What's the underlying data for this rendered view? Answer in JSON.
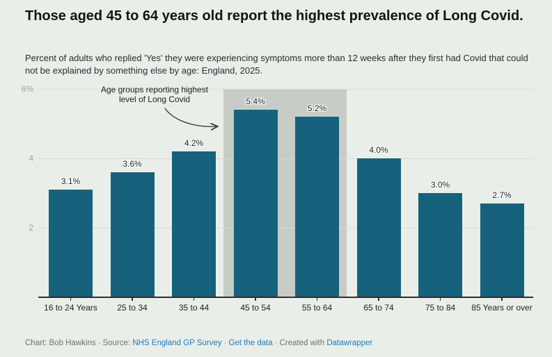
{
  "header": {
    "title": "Those aged 45 to 64 years old report the highest prevalence of Long Covid.",
    "subtitle": "Percent of adults who replied 'Yes' they were experiencing symptoms more than 12 weeks after they first had Covid that could not be explained by something else by age: England, 2025."
  },
  "chart_data": {
    "type": "bar",
    "title": "Those aged 45 to 64 years old report the highest prevalence of Long Covid.",
    "categories": [
      "16 to 24 Years",
      "25 to 34",
      "35 to 44",
      "45 to 54",
      "55 to 64",
      "65 to 74",
      "75 to 84",
      "85 Years or over"
    ],
    "values": [
      3.1,
      3.6,
      4.2,
      5.4,
      5.2,
      4.0,
      3.0,
      2.7
    ],
    "value_labels": [
      "3.1%",
      "3.6%",
      "4.2%",
      "5.4%",
      "5.2%",
      "4.0%",
      "3.0%",
      "2.7%"
    ],
    "xlabel": "",
    "ylabel": "",
    "ylim": [
      0,
      6
    ],
    "y_ticks": [
      {
        "value": 6,
        "label": "6%"
      },
      {
        "value": 4,
        "label": "4"
      },
      {
        "value": 2,
        "label": "2"
      }
    ],
    "grid": true,
    "legend": "none",
    "bar_color": "#16617c",
    "highlight_color": "#c8ccc6",
    "highlight_indices": [
      3,
      4
    ],
    "highlight_categories": [
      "45 to 54",
      "55 to 64"
    ]
  },
  "annotation": {
    "lines": [
      "Age groups reporting highest",
      "level of Long Covid"
    ]
  },
  "footer": {
    "chart_credit": "Chart: Bob Hawkins",
    "separator": "·",
    "source_label": "Source:",
    "source_link_label": "NHS England GP Survey",
    "get_data_label": "Get the data",
    "created_with_label": "Created with",
    "datawrapper_label": "Datawrapper",
    "link_color": "#1d7abc"
  }
}
